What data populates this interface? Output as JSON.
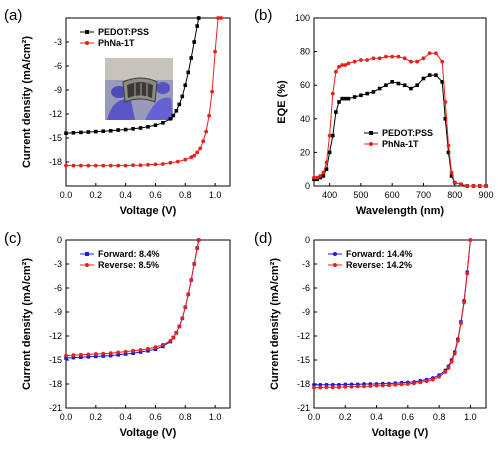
{
  "chart_data": [
    {
      "panel_label": "(a)",
      "type": "line",
      "xlabel": "Voltage (V)",
      "ylabel": "Current density (mA/cm²)",
      "xlim": [
        0.0,
        1.1
      ],
      "ylim": [
        -21,
        0
      ],
      "xticks": [
        "0.0",
        "0.2",
        "0.4",
        "0.6",
        "0.8",
        "1.0"
      ],
      "yticks": [
        "-3",
        "-6",
        "-9",
        "-12",
        "-15",
        "-18"
      ],
      "legend_position": "top-left",
      "series": [
        {
          "name": "PEDOT:PSS",
          "color": "#000000",
          "marker": "square",
          "x": [
            0.0,
            0.05,
            0.1,
            0.15,
            0.2,
            0.25,
            0.3,
            0.35,
            0.4,
            0.45,
            0.5,
            0.55,
            0.6,
            0.65,
            0.7,
            0.72,
            0.74,
            0.76,
            0.78,
            0.8,
            0.82,
            0.84,
            0.86,
            0.88,
            0.89
          ],
          "y": [
            -14.4,
            -14.35,
            -14.3,
            -14.25,
            -14.2,
            -14.15,
            -14.1,
            -14.0,
            -13.95,
            -13.85,
            -13.75,
            -13.6,
            -13.4,
            -13.1,
            -12.6,
            -12.2,
            -11.6,
            -10.8,
            -9.8,
            -8.4,
            -6.8,
            -5.0,
            -3.0,
            -1.0,
            0.0
          ]
        },
        {
          "name": "PhNa-1T",
          "color": "#e8201c",
          "marker": "circle",
          "x": [
            0.0,
            0.05,
            0.1,
            0.15,
            0.2,
            0.25,
            0.3,
            0.35,
            0.4,
            0.45,
            0.5,
            0.55,
            0.6,
            0.65,
            0.7,
            0.75,
            0.8,
            0.84,
            0.86,
            0.88,
            0.9,
            0.92,
            0.94,
            0.96,
            0.98,
            1.0,
            1.02,
            1.04
          ],
          "y": [
            -18.45,
            -18.45,
            -18.45,
            -18.45,
            -18.45,
            -18.45,
            -18.45,
            -18.45,
            -18.45,
            -18.4,
            -18.4,
            -18.35,
            -18.3,
            -18.25,
            -18.1,
            -17.95,
            -17.7,
            -17.4,
            -17.2,
            -16.8,
            -16.3,
            -15.4,
            -14.2,
            -12.2,
            -9.2,
            -4.2,
            0.0,
            0.0
          ]
        }
      ],
      "inset": "photo-of-flexible-device-held-by-gloved-fingers"
    },
    {
      "panel_label": "(b)",
      "type": "line",
      "xlabel": "Wavelength (nm)",
      "ylabel": "EQE (%)",
      "xlim": [
        350,
        900
      ],
      "ylim": [
        0,
        100
      ],
      "xticks": [
        "400",
        "500",
        "600",
        "700",
        "800",
        "900"
      ],
      "yticks": [
        "0",
        "20",
        "40",
        "60",
        "80",
        "100"
      ],
      "legend_position": "bottom-center",
      "series": [
        {
          "name": "PEDOT:PSS",
          "color": "#000000",
          "marker": "square",
          "x": [
            350,
            360,
            370,
            380,
            390,
            400,
            410,
            420,
            430,
            440,
            450,
            460,
            480,
            500,
            520,
            540,
            560,
            580,
            600,
            620,
            640,
            660,
            680,
            700,
            720,
            740,
            760,
            770,
            780,
            790,
            800,
            820,
            840,
            860,
            880,
            900
          ],
          "y": [
            4,
            4,
            5,
            6,
            10,
            20,
            30,
            44,
            50,
            52,
            52,
            52,
            53,
            54,
            55,
            56,
            58,
            60,
            62,
            61,
            60,
            58,
            60,
            64,
            66,
            66,
            62,
            40,
            20,
            6,
            2,
            1,
            0,
            0,
            0,
            0
          ]
        },
        {
          "name": "PhNa-1T",
          "color": "#e8201c",
          "marker": "circle",
          "x": [
            350,
            360,
            370,
            380,
            390,
            400,
            410,
            420,
            430,
            440,
            450,
            460,
            480,
            500,
            520,
            540,
            560,
            580,
            600,
            620,
            640,
            660,
            680,
            700,
            720,
            740,
            760,
            770,
            780,
            790,
            800,
            820,
            840,
            860,
            880,
            900
          ],
          "y": [
            5,
            5,
            6,
            8,
            14,
            30,
            55,
            68,
            71,
            72,
            72,
            73,
            74,
            75,
            75,
            76,
            76,
            77,
            77,
            77,
            76,
            74,
            74,
            76,
            79,
            79,
            74,
            50,
            24,
            8,
            2,
            1,
            0,
            0,
            0,
            0
          ]
        }
      ]
    },
    {
      "panel_label": "(c)",
      "type": "line",
      "xlabel": "Voltage (V)",
      "ylabel": "Current density (mA/cm²)",
      "xlim": [
        0.0,
        1.1
      ],
      "ylim": [
        -21,
        0
      ],
      "xticks": [
        "0.0",
        "0.2",
        "0.4",
        "0.6",
        "0.8",
        "1.0"
      ],
      "yticks": [
        "0",
        "-3",
        "-6",
        "-9",
        "-12",
        "-15",
        "-18",
        "-21"
      ],
      "legend_position": "top-left",
      "series": [
        {
          "name": "Forward: 8.4%",
          "color": "#1a1ad8",
          "marker": "square",
          "x": [
            0.0,
            0.05,
            0.1,
            0.15,
            0.2,
            0.25,
            0.3,
            0.35,
            0.4,
            0.45,
            0.5,
            0.55,
            0.6,
            0.65,
            0.7,
            0.72,
            0.74,
            0.76,
            0.78,
            0.8,
            0.82,
            0.84,
            0.86,
            0.88,
            0.89
          ],
          "y": [
            -14.75,
            -14.7,
            -14.65,
            -14.6,
            -14.55,
            -14.5,
            -14.45,
            -14.35,
            -14.25,
            -14.15,
            -14.0,
            -13.85,
            -13.65,
            -13.3,
            -12.7,
            -12.2,
            -11.6,
            -10.8,
            -9.8,
            -8.4,
            -6.8,
            -5.0,
            -3.0,
            -1.0,
            0.0
          ]
        },
        {
          "name": "Reverse: 8.5%",
          "color": "#e8201c",
          "marker": "circle",
          "x": [
            0.0,
            0.05,
            0.1,
            0.15,
            0.2,
            0.25,
            0.3,
            0.35,
            0.4,
            0.45,
            0.5,
            0.55,
            0.6,
            0.65,
            0.7,
            0.72,
            0.74,
            0.76,
            0.78,
            0.8,
            0.82,
            0.84,
            0.86,
            0.88,
            0.89
          ],
          "y": [
            -14.45,
            -14.4,
            -14.35,
            -14.3,
            -14.25,
            -14.2,
            -14.15,
            -14.05,
            -13.95,
            -13.85,
            -13.75,
            -13.6,
            -13.4,
            -13.1,
            -12.6,
            -12.2,
            -11.6,
            -10.8,
            -9.8,
            -8.4,
            -6.8,
            -5.0,
            -3.0,
            -1.0,
            0.0
          ]
        }
      ]
    },
    {
      "panel_label": "(d)",
      "type": "line",
      "xlabel": "Voltage (V)",
      "ylabel": "Current density (mA/cm²)",
      "xlim": [
        0.0,
        1.1
      ],
      "ylim": [
        -21,
        0
      ],
      "xticks": [
        "0.0",
        "0.2",
        "0.4",
        "0.6",
        "0.8",
        "1.0"
      ],
      "yticks": [
        "0",
        "-3",
        "-6",
        "-9",
        "-12",
        "-15",
        "-18",
        "-21"
      ],
      "legend_position": "top-left",
      "series": [
        {
          "name": "Forward: 14.4%",
          "color": "#1a1ad8",
          "marker": "circle",
          "x": [
            0.0,
            0.04,
            0.08,
            0.12,
            0.16,
            0.2,
            0.24,
            0.28,
            0.32,
            0.36,
            0.4,
            0.44,
            0.48,
            0.52,
            0.56,
            0.6,
            0.64,
            0.68,
            0.72,
            0.76,
            0.8,
            0.84,
            0.86,
            0.88,
            0.9,
            0.92,
            0.94,
            0.96,
            0.98,
            1.0
          ],
          "y": [
            -18.1,
            -18.1,
            -18.1,
            -18.1,
            -18.1,
            -18.05,
            -18.05,
            -18.05,
            -18.0,
            -18.0,
            -18.0,
            -17.95,
            -17.95,
            -17.9,
            -17.85,
            -17.8,
            -17.75,
            -17.6,
            -17.45,
            -17.25,
            -16.9,
            -16.3,
            -15.8,
            -15.0,
            -14.0,
            -12.4,
            -10.2,
            -7.6,
            -4.0,
            0.0
          ]
        },
        {
          "name": "Reverse: 14.2%",
          "color": "#e8201c",
          "marker": "circle",
          "x": [
            0.0,
            0.04,
            0.08,
            0.12,
            0.16,
            0.2,
            0.24,
            0.28,
            0.32,
            0.36,
            0.4,
            0.44,
            0.48,
            0.52,
            0.56,
            0.6,
            0.64,
            0.68,
            0.72,
            0.76,
            0.8,
            0.84,
            0.86,
            0.88,
            0.9,
            0.92,
            0.94,
            0.96,
            0.98,
            1.0
          ],
          "y": [
            -18.45,
            -18.45,
            -18.4,
            -18.4,
            -18.4,
            -18.35,
            -18.35,
            -18.3,
            -18.3,
            -18.25,
            -18.2,
            -18.2,
            -18.15,
            -18.1,
            -18.05,
            -18.0,
            -17.9,
            -17.8,
            -17.65,
            -17.45,
            -17.1,
            -16.5,
            -16.0,
            -15.2,
            -14.2,
            -12.6,
            -10.4,
            -7.8,
            -4.2,
            0.0
          ]
        }
      ]
    }
  ]
}
